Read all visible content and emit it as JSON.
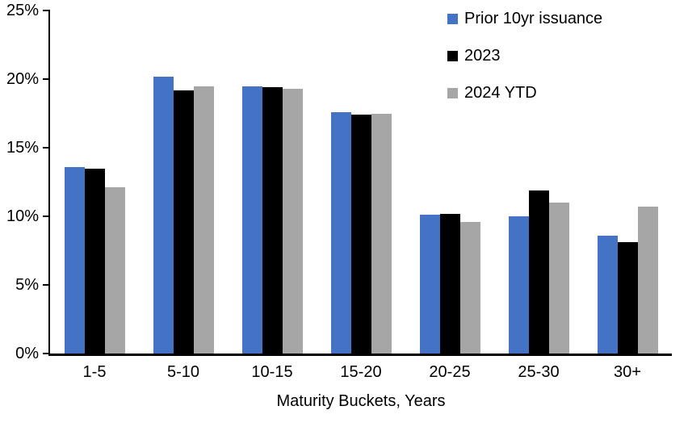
{
  "chart_data": {
    "type": "bar",
    "title": "",
    "xlabel": "Maturity Buckets, Years",
    "ylabel": "",
    "ylim": [
      0,
      25
    ],
    "ytick_step": 5,
    "ytick_format": "percent",
    "y_ticks_top_to_bottom": [
      "25%",
      "20%",
      "15%",
      "10%",
      "5%",
      "0%"
    ],
    "grid": false,
    "legend_position": "top-right",
    "categories": [
      "1-5",
      "5-10",
      "10-15",
      "15-20",
      "20-25",
      "25-30",
      "30+"
    ],
    "series": [
      {
        "name": "Prior 10yr issuance",
        "color": "#4472C4",
        "values": [
          13.6,
          20.2,
          19.5,
          17.6,
          10.1,
          10.0,
          8.6
        ]
      },
      {
        "name": "2023",
        "color": "#000000",
        "values": [
          13.5,
          19.2,
          19.4,
          17.4,
          10.2,
          11.9,
          8.1
        ]
      },
      {
        "name": "2024 YTD",
        "color": "#A6A6A6",
        "values": [
          12.1,
          19.5,
          19.3,
          17.5,
          9.6,
          11.0,
          10.7
        ]
      }
    ]
  }
}
